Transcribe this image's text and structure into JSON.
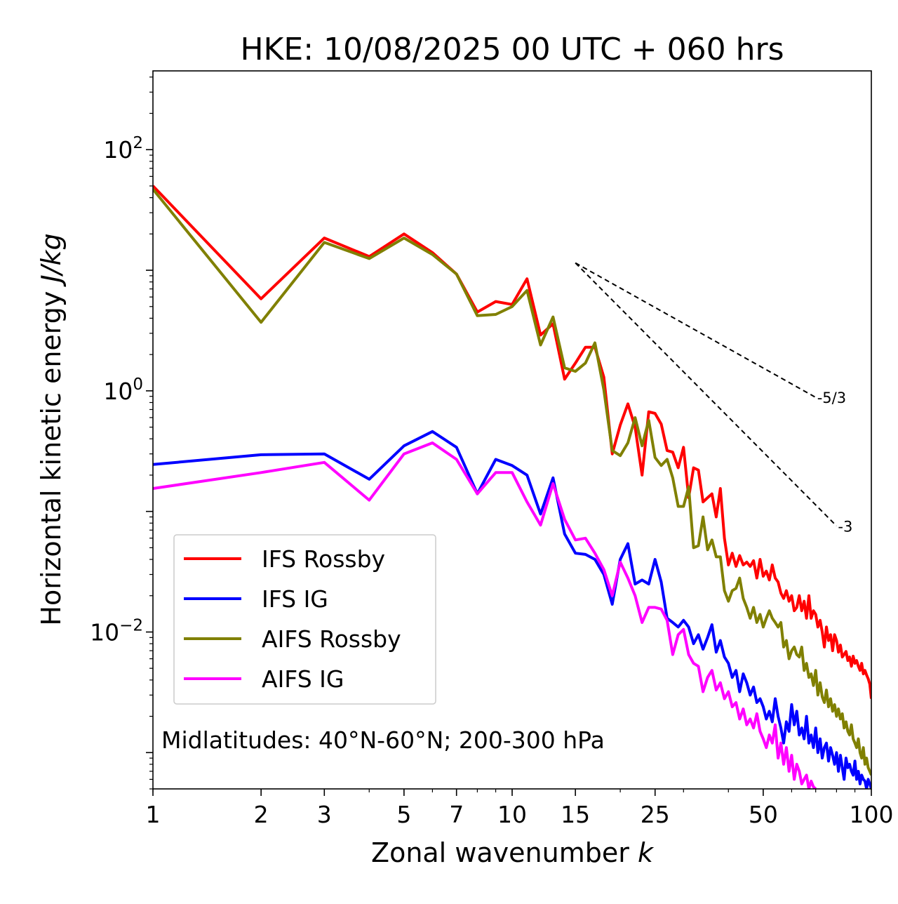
{
  "chart_data": {
    "type": "line",
    "title": "HKE: 10/08/2025 00 UTC + 060 hrs",
    "xlabel": "Zonal wavenumber ",
    "xlabel_var": "k",
    "ylabel": "Horizontal kinetic energy ",
    "ylabel_units": "J/kg",
    "x_scale": "log",
    "y_scale": "log",
    "xlim": [
      1,
      100
    ],
    "ylim": [
      0.0005,
      450
    ],
    "x_ticks": [
      1,
      2,
      3,
      5,
      7,
      10,
      15,
      25,
      50,
      100
    ],
    "x_tick_labels": [
      "1",
      "2",
      "3",
      "5",
      "7",
      "10",
      "15",
      "25",
      "50",
      "100"
    ],
    "y_ticks": [
      {
        "value": 100,
        "base": "10",
        "exp": "2"
      },
      {
        "value": 1,
        "base": "10",
        "exp": "0"
      },
      {
        "value": 0.01,
        "base": "10",
        "exp": "−2"
      }
    ],
    "grid": false,
    "legend_position": "lower-left",
    "annotation": "Midlatitudes: 40°N-60°N; 200-300 hPa",
    "reference_lines": [
      {
        "label": "-5/3",
        "slope": -1.6667,
        "x": [
          15,
          70
        ],
        "y_start": 11.5
      },
      {
        "label": "-3",
        "slope": -3,
        "x": [
          15,
          80
        ],
        "y_start": 11.5
      }
    ],
    "series": [
      {
        "name": "IFS Rossby",
        "color": "#ff0000",
        "x": [
          1,
          2,
          3,
          4,
          5,
          6,
          7,
          8,
          9,
          10,
          11,
          12,
          13,
          14,
          15,
          16,
          17,
          18,
          19,
          20,
          21,
          22,
          23,
          24,
          25,
          26,
          27,
          28,
          29,
          30,
          31,
          32,
          33,
          34,
          35,
          36,
          37,
          38,
          39,
          40,
          41,
          42,
          43,
          44,
          45,
          46,
          47,
          48,
          49,
          50,
          51,
          52,
          53,
          54,
          55,
          56,
          57,
          58,
          59,
          60,
          61,
          62,
          63,
          64,
          65,
          66,
          67,
          68,
          69,
          70,
          71,
          72,
          73,
          74,
          75,
          76,
          77,
          78,
          79,
          80,
          81,
          82,
          83,
          84,
          85,
          86,
          87,
          88,
          89,
          90,
          91,
          92,
          93,
          94,
          95,
          96,
          97,
          98,
          99,
          100
        ],
        "values": [
          50,
          5.8,
          18.5,
          13,
          20,
          14,
          9.3,
          4.5,
          5.5,
          5.2,
          8.5,
          2.9,
          3.6,
          1.25,
          1.7,
          2.3,
          2.3,
          1.3,
          0.3,
          0.52,
          0.78,
          0.5,
          0.2,
          0.67,
          0.65,
          0.53,
          0.32,
          0.31,
          0.23,
          0.34,
          0.13,
          0.23,
          0.22,
          0.12,
          0.13,
          0.14,
          0.09,
          0.155,
          0.06,
          0.036,
          0.045,
          0.035,
          0.043,
          0.036,
          0.038,
          0.035,
          0.039,
          0.028,
          0.04,
          0.029,
          0.032,
          0.027,
          0.036,
          0.028,
          0.026,
          0.021,
          0.019,
          0.022,
          0.018,
          0.02,
          0.015,
          0.016,
          0.02,
          0.015,
          0.018,
          0.013,
          0.02,
          0.013,
          0.015,
          0.014,
          0.011,
          0.0125,
          0.01,
          0.0075,
          0.011,
          0.0085,
          0.0095,
          0.007,
          0.0095,
          0.0085,
          0.0068,
          0.0078,
          0.0062,
          0.0065,
          0.0069,
          0.0058,
          0.0062,
          0.0052,
          0.0063,
          0.0055,
          0.0058,
          0.0052,
          0.0048,
          0.0055,
          0.0045,
          0.0048,
          0.0044,
          0.0041,
          0.0037,
          0.0028
        ]
      },
      {
        "name": "IFS IG",
        "color": "#0000ff",
        "x": [
          1,
          2,
          3,
          4,
          5,
          6,
          7,
          8,
          9,
          10,
          11,
          12,
          13,
          14,
          15,
          16,
          17,
          18,
          19,
          20,
          21,
          22,
          23,
          24,
          25,
          26,
          27,
          28,
          29,
          30,
          31,
          32,
          33,
          34,
          35,
          36,
          37,
          38,
          39,
          40,
          41,
          42,
          43,
          44,
          45,
          46,
          47,
          48,
          49,
          50,
          51,
          52,
          53,
          54,
          55,
          56,
          57,
          58,
          59,
          60,
          61,
          62,
          63,
          64,
          65,
          66,
          67,
          68,
          69,
          70,
          71,
          72,
          73,
          74,
          75,
          76,
          77,
          78,
          79,
          80,
          81,
          82,
          83,
          84,
          85,
          86,
          87,
          88,
          89,
          90,
          91,
          92,
          93,
          94,
          95,
          96,
          97,
          98,
          99,
          100
        ],
        "values": [
          0.245,
          0.295,
          0.3,
          0.185,
          0.35,
          0.46,
          0.34,
          0.14,
          0.27,
          0.24,
          0.2,
          0.095,
          0.19,
          0.065,
          0.045,
          0.044,
          0.04,
          0.03,
          0.017,
          0.04,
          0.054,
          0.025,
          0.027,
          0.025,
          0.04,
          0.026,
          0.013,
          0.012,
          0.011,
          0.0125,
          0.011,
          0.008,
          0.0095,
          0.0072,
          0.009,
          0.0115,
          0.0068,
          0.0085,
          0.0062,
          0.0055,
          0.0042,
          0.0048,
          0.0032,
          0.0045,
          0.0038,
          0.003,
          0.0035,
          0.0026,
          0.0028,
          0.0024,
          0.0019,
          0.0022,
          0.0018,
          0.0028,
          0.002,
          0.0016,
          0.0012,
          0.0018,
          0.0015,
          0.0025,
          0.0017,
          0.0022,
          0.0014,
          0.0016,
          0.0013,
          0.002,
          0.0012,
          0.0014,
          0.0011,
          0.0016,
          0.001,
          0.0013,
          0.0009,
          0.0011,
          0.0012,
          0.00085,
          0.0011,
          0.00095,
          0.0008,
          0.001,
          0.0007,
          0.00095,
          0.00075,
          0.0006,
          0.0009,
          0.00075,
          0.0008,
          0.0007,
          0.00065,
          0.00085,
          0.0006,
          0.0007,
          0.00055,
          0.00065,
          0.0006,
          0.00058,
          0.0005,
          0.0006,
          0.00055,
          0.0005
        ]
      },
      {
        "name": "AIFS Rossby",
        "color": "#808000",
        "x": [
          1,
          2,
          3,
          4,
          5,
          6,
          7,
          8,
          9,
          10,
          11,
          12,
          13,
          14,
          15,
          16,
          17,
          18,
          19,
          20,
          21,
          22,
          23,
          24,
          25,
          26,
          27,
          28,
          29,
          30,
          31,
          32,
          33,
          34,
          35,
          36,
          37,
          38,
          39,
          40,
          41,
          42,
          43,
          44,
          45,
          46,
          47,
          48,
          49,
          50,
          51,
          52,
          53,
          54,
          55,
          56,
          57,
          58,
          59,
          60,
          61,
          62,
          63,
          64,
          65,
          66,
          67,
          68,
          69,
          70,
          71,
          72,
          73,
          74,
          75,
          76,
          77,
          78,
          79,
          80,
          81,
          82,
          83,
          84,
          85,
          86,
          87,
          88,
          89,
          90,
          91,
          92,
          93,
          94,
          95,
          96,
          97,
          98,
          99,
          100
        ],
        "values": [
          47,
          3.7,
          17,
          12.5,
          18.5,
          13.5,
          9.3,
          4.2,
          4.3,
          5,
          6.8,
          2.4,
          4.1,
          1.55,
          1.45,
          1.7,
          2.5,
          1.02,
          0.32,
          0.29,
          0.37,
          0.6,
          0.35,
          0.57,
          0.28,
          0.24,
          0.27,
          0.19,
          0.11,
          0.11,
          0.16,
          0.05,
          0.052,
          0.09,
          0.048,
          0.058,
          0.042,
          0.042,
          0.022,
          0.018,
          0.022,
          0.023,
          0.028,
          0.019,
          0.016,
          0.013,
          0.016,
          0.012,
          0.014,
          0.011,
          0.013,
          0.015,
          0.013,
          0.012,
          0.011,
          0.012,
          0.0075,
          0.0085,
          0.006,
          0.007,
          0.0075,
          0.0065,
          0.0062,
          0.0075,
          0.0048,
          0.0055,
          0.0042,
          0.0045,
          0.0036,
          0.0048,
          0.003,
          0.0038,
          0.0029,
          0.0026,
          0.0033,
          0.0024,
          0.0028,
          0.0022,
          0.0025,
          0.002,
          0.0023,
          0.0019,
          0.0021,
          0.0016,
          0.0018,
          0.0015,
          0.0014,
          0.0017,
          0.0013,
          0.0012,
          0.0011,
          0.0013,
          0.001,
          0.0009,
          0.0011,
          0.0008,
          0.0009,
          0.00075,
          0.0007,
          0.00065
        ]
      },
      {
        "name": "AIFS IG",
        "color": "#ff00ff",
        "x": [
          1,
          2,
          3,
          4,
          5,
          6,
          7,
          8,
          9,
          10,
          11,
          12,
          13,
          14,
          15,
          16,
          17,
          18,
          19,
          20,
          21,
          22,
          23,
          24,
          25,
          26,
          27,
          28,
          29,
          30,
          31,
          32,
          33,
          34,
          35,
          36,
          37,
          38,
          39,
          40,
          41,
          42,
          43,
          44,
          45,
          46,
          47,
          48,
          49,
          50,
          51,
          52,
          53,
          54,
          55,
          56,
          57,
          58,
          59,
          60,
          61,
          62,
          63,
          64,
          65,
          66,
          67,
          68,
          69,
          70
        ],
        "values": [
          0.155,
          0.21,
          0.255,
          0.124,
          0.3,
          0.37,
          0.27,
          0.14,
          0.21,
          0.21,
          0.12,
          0.077,
          0.17,
          0.086,
          0.058,
          0.06,
          0.045,
          0.033,
          0.02,
          0.038,
          0.028,
          0.02,
          0.012,
          0.016,
          0.016,
          0.0155,
          0.0125,
          0.0065,
          0.0095,
          0.0105,
          0.0065,
          0.0055,
          0.0052,
          0.0032,
          0.0042,
          0.0048,
          0.0033,
          0.0038,
          0.0028,
          0.0032,
          0.0024,
          0.0026,
          0.0019,
          0.0023,
          0.0017,
          0.0019,
          0.0016,
          0.0021,
          0.0015,
          0.0013,
          0.0011,
          0.0014,
          0.0012,
          0.0017,
          0.0009,
          0.0012,
          0.0008,
          0.0011,
          0.0007,
          0.00095,
          0.0006,
          0.0008,
          0.0007,
          0.00055,
          0.0006,
          0.00065,
          0.0005,
          0.00058,
          0.00052,
          0.0005
        ]
      }
    ]
  }
}
